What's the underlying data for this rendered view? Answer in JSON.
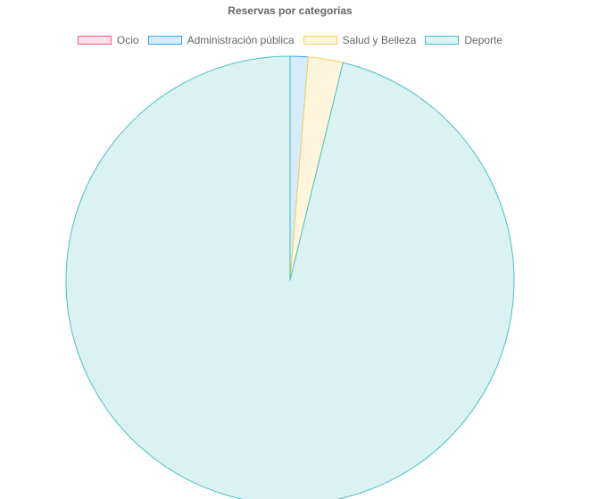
{
  "chart_data": {
    "type": "pie",
    "title": "Reservas por categorías",
    "legend_position": "top",
    "categories": [
      "Ocio",
      "Administración pública",
      "Salud y Belleza",
      "Deporte"
    ],
    "values": [
      0,
      1.3,
      2.5,
      96.2
    ],
    "colors": {
      "fill": [
        "#ffe0e6",
        "#d7ecfb",
        "#fff5dd",
        "#dbf2f2"
      ],
      "border": [
        "#ff6384",
        "#36a2eb",
        "#ffce56",
        "#4bc0c0"
      ]
    }
  }
}
